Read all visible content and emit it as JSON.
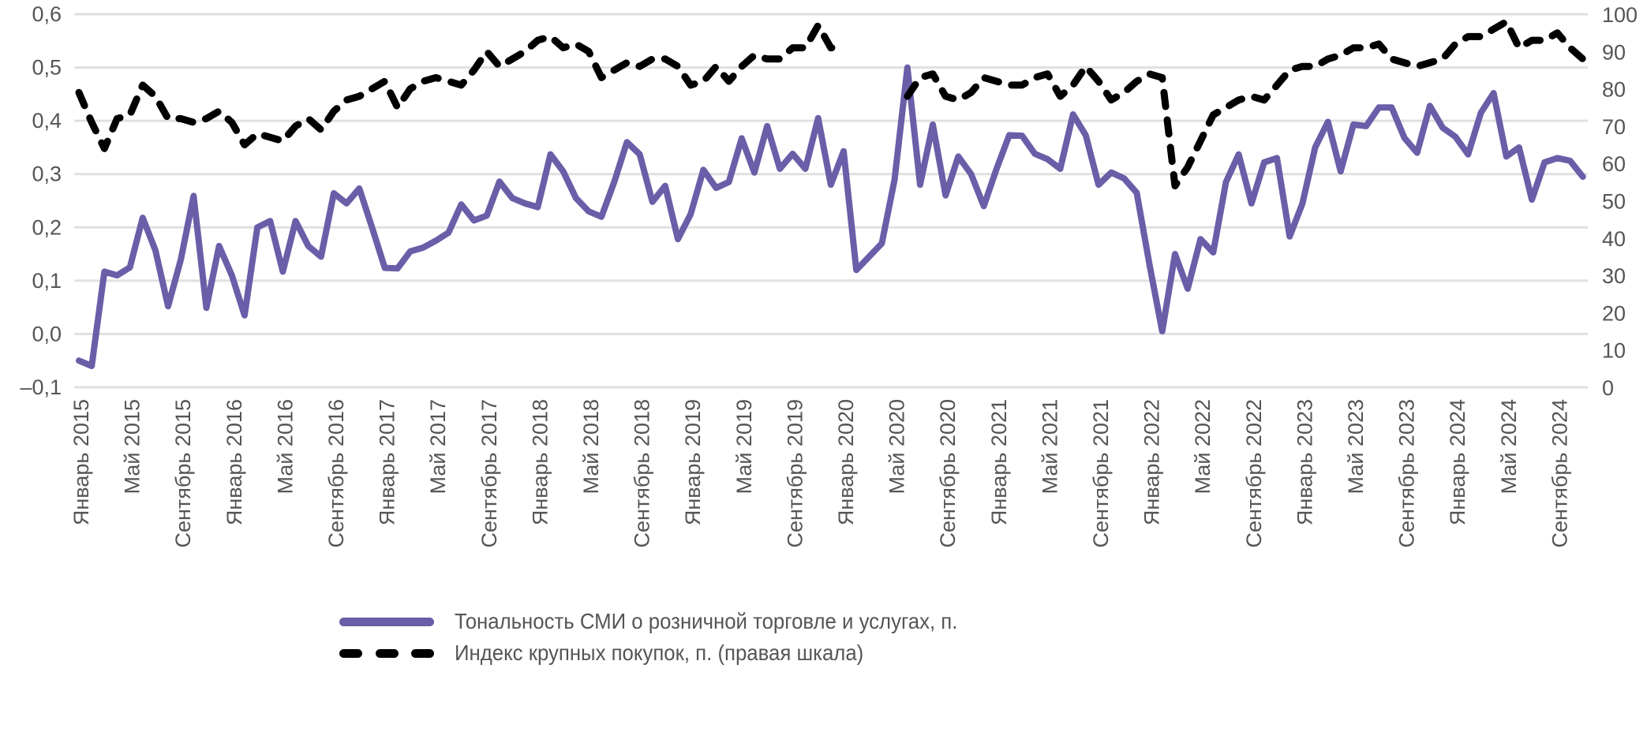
{
  "chart_data": {
    "type": "line",
    "title": "",
    "xlabel": "",
    "ylabel": "",
    "y_left": {
      "lim": [
        -0.1,
        0.6
      ],
      "ticks": [
        "–0,1",
        "0,0",
        "0,1",
        "0,2",
        "0,3",
        "0,4",
        "0,5",
        "0,6"
      ],
      "tick_values": [
        -0.1,
        0,
        0.1,
        0.2,
        0.3,
        0.4,
        0.5,
        0.6
      ]
    },
    "y_right": {
      "lim": [
        0,
        100
      ],
      "ticks": [
        "0",
        "10",
        "20",
        "30",
        "40",
        "50",
        "60",
        "70",
        "80",
        "90",
        "100"
      ],
      "tick_values": [
        0,
        10,
        20,
        30,
        40,
        50,
        60,
        70,
        80,
        90,
        100
      ]
    },
    "x_start": "Январь 2015",
    "x_end": "Ноябрь 2024",
    "n_points": 119,
    "x_tick_every_months": 4,
    "x_ticks": [
      "Январь 2015",
      "Май 2015",
      "Сентябрь 2015",
      "Январь 2016",
      "Май 2016",
      "Сентябрь 2016",
      "Январь 2017",
      "Май 2017",
      "Сентябрь 2017",
      "Январь 2018",
      "Май 2018",
      "Сентябрь 2018",
      "Январь 2019",
      "Май 2019",
      "Сентябрь 2019",
      "Январь 2020",
      "Май 2020",
      "Сентябрь 2020",
      "Январь 2021",
      "Май 2021",
      "Сентябрь 2021",
      "Январь 2022",
      "Май 2022",
      "Сентябрь 2022",
      "Январь 2023",
      "Май 2023",
      "Сентябрь 2023",
      "Январь 2024",
      "Май 2024",
      "Сентябрь 2024"
    ],
    "grid": true,
    "legend_position": "bottom",
    "series": [
      {
        "name": "Тональность СМИ о розничной торговле и услугах, п.",
        "axis": "left",
        "style": "solid",
        "color": "#6a5ea8",
        "values": [
          -0.05,
          -0.06,
          0.117,
          0.11,
          0.125,
          0.218,
          0.157,
          0.052,
          0.14,
          0.259,
          0.049,
          0.165,
          0.11,
          0.035,
          0.2,
          0.212,
          0.117,
          0.212,
          0.165,
          0.145,
          0.264,
          0.245,
          0.273,
          0.2,
          0.124,
          0.123,
          0.155,
          0.162,
          0.175,
          0.19,
          0.243,
          0.213,
          0.222,
          0.286,
          0.255,
          0.245,
          0.238,
          0.337,
          0.305,
          0.255,
          0.23,
          0.22,
          0.285,
          0.36,
          0.337,
          0.248,
          0.278,
          0.178,
          0.225,
          0.308,
          0.274,
          0.285,
          0.367,
          0.303,
          0.39,
          0.31,
          0.338,
          0.31,
          0.405,
          0.28,
          0.343,
          0.12,
          0.145,
          0.17,
          0.29,
          0.5,
          0.28,
          0.393,
          0.26,
          0.333,
          0.3,
          0.24,
          0.31,
          0.373,
          0.372,
          0.338,
          0.328,
          0.31,
          0.412,
          0.373,
          0.28,
          0.303,
          0.292,
          0.265,
          0.13,
          0.005,
          0.15,
          0.085,
          0.178,
          0.153,
          0.285,
          0.337,
          0.245,
          0.322,
          0.33,
          0.183,
          0.245,
          0.35,
          0.398,
          0.305,
          0.393,
          0.39,
          0.425,
          0.425,
          0.368,
          0.34,
          0.428,
          0.387,
          0.37,
          0.337,
          0.415,
          0.452,
          0.333,
          0.35,
          0.252,
          0.322,
          0.33,
          0.325,
          0.295
        ]
      },
      {
        "name": "Индекс крупных покупок, п. (правая шкала)",
        "axis": "right",
        "style": "dashed",
        "color": "#000000",
        "values": [
          79,
          71,
          64,
          72,
          73,
          81,
          78,
          72,
          72,
          71,
          72,
          74,
          71,
          65,
          68,
          67,
          66,
          70,
          72,
          69,
          74,
          77,
          78,
          80,
          82,
          75,
          80,
          82,
          83,
          82,
          81,
          85,
          90,
          86,
          88,
          90,
          93,
          94,
          91,
          92,
          90,
          83,
          85,
          87,
          86,
          88,
          88,
          86,
          81,
          82,
          86,
          82,
          86,
          89,
          88,
          88,
          91,
          91,
          97,
          91,
          91,
          null,
          null,
          null,
          null,
          78,
          83,
          84,
          78,
          77,
          79,
          83,
          82,
          81,
          81,
          83,
          84,
          78,
          81,
          86,
          82,
          77,
          79,
          82,
          84,
          83,
          54,
          59,
          66,
          73,
          75,
          77,
          78,
          77,
          81,
          85,
          86,
          86,
          88,
          89,
          91,
          91,
          92,
          88,
          87,
          86,
          87,
          88,
          92,
          94,
          94,
          96,
          98,
          91,
          93,
          93,
          95,
          91,
          88
        ]
      }
    ]
  },
  "legend": {
    "items": [
      {
        "label": "Тональность СМИ о розничной торговле и услугах, п."
      },
      {
        "label": "Индекс крупных покупок, п. (правая шкала)"
      }
    ]
  },
  "colors": {
    "gridline": "#e0e0e0",
    "tick_text": "#555555"
  }
}
